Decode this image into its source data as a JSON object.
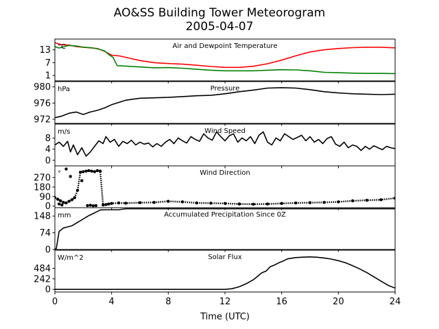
{
  "figure": {
    "title_line1": "AO&SS Building Tower Meteorogram",
    "title_line2": "2005-04-07",
    "xlabel": "Time (UTC)",
    "xlim": [
      0,
      24
    ],
    "xticks": [
      0,
      4,
      8,
      12,
      16,
      20,
      24
    ],
    "xtick_labels": [
      "0",
      "4",
      "8",
      "12",
      "16",
      "20",
      "24"
    ]
  },
  "chart_data": [
    {
      "type": "line",
      "title": "Air and Dewpoint Temperature",
      "unit": "°C",
      "ylim": [
        -1.5,
        18
      ],
      "yticks": [
        1,
        7,
        13
      ],
      "ytick_labels": [
        "1",
        "7",
        "13"
      ],
      "series": [
        {
          "color": "#ff0000",
          "x": [
            0,
            0.4,
            1,
            1.5,
            2,
            2.5,
            3,
            3.5,
            4,
            4.5,
            5,
            6,
            7,
            8,
            9,
            10,
            11,
            12,
            13,
            14,
            15,
            16,
            17,
            18,
            19,
            20,
            21,
            22,
            23,
            24
          ],
          "values": [
            16.3,
            15.4,
            15.2,
            14.5,
            14.2,
            13.9,
            13.6,
            12.3,
            10.5,
            10.2,
            9.5,
            8.0,
            7.0,
            6.6,
            6.3,
            5.8,
            5.2,
            4.8,
            4.8,
            5.3,
            6.5,
            8.2,
            10.2,
            12.0,
            13.0,
            13.6,
            14.0,
            14.2,
            14.2,
            13.9
          ]
        },
        {
          "color": "#008000",
          "x": [
            0,
            0.3,
            0.7,
            1,
            1.5,
            2,
            2.5,
            3,
            3.5,
            3.9,
            4.1,
            4.4,
            5,
            6,
            7,
            8,
            9,
            10,
            11,
            12,
            13,
            14,
            15,
            16,
            17,
            18,
            19,
            20,
            21,
            22,
            23,
            24
          ],
          "values": [
            14.5,
            13.8,
            14.6,
            15.0,
            14.8,
            14.2,
            14.0,
            13.5,
            12.5,
            10.3,
            9.5,
            5.6,
            5.4,
            5.0,
            4.6,
            4.7,
            4.4,
            3.9,
            3.5,
            3.2,
            3.2,
            3.2,
            3.5,
            3.7,
            3.6,
            3.2,
            2.5,
            2.3,
            2.1,
            2.0,
            2.0,
            1.9
          ]
        }
      ]
    },
    {
      "type": "line",
      "title": "Pressure",
      "unit": "hPa",
      "ylim": [
        971.0,
        981.3
      ],
      "yticks": [
        972,
        976,
        980
      ],
      "ytick_labels": [
        "972",
        "976",
        "980"
      ],
      "series": [
        {
          "color": "#000000",
          "x": [
            0,
            0.5,
            1,
            1.5,
            2,
            2.5,
            3,
            3.5,
            4,
            5,
            6,
            7,
            8,
            9,
            10,
            11,
            12,
            13,
            14,
            15,
            16,
            17,
            18,
            19,
            20,
            21,
            22,
            23,
            24
          ],
          "values": [
            972.4,
            972.8,
            973.5,
            973.8,
            973.2,
            973.8,
            974.2,
            974.8,
            975.6,
            976.7,
            977.2,
            977.3,
            977.4,
            977.6,
            977.8,
            977.9,
            978.3,
            978.8,
            979.2,
            979.7,
            979.8,
            979.7,
            979.3,
            978.8,
            978.5,
            978.3,
            978.2,
            978.1,
            978.2
          ]
        }
      ]
    },
    {
      "type": "line",
      "title": "Wind Speed",
      "unit": "m/s",
      "ylim": [
        -2,
        13
      ],
      "yticks": [
        0,
        4,
        8
      ],
      "ytick_labels": [
        "0",
        "4",
        "8"
      ],
      "series": [
        {
          "color": "#000000",
          "x": [
            0,
            0.3,
            0.6,
            0.9,
            1.1,
            1.3,
            1.6,
            1.9,
            2.2,
            2.5,
            2.8,
            3.1,
            3.4,
            3.6,
            3.9,
            4.2,
            4.5,
            4.8,
            5.1,
            5.4,
            5.7,
            6.0,
            6.3,
            6.6,
            6.9,
            7.2,
            7.5,
            7.8,
            8.1,
            8.4,
            8.7,
            9.0,
            9.3,
            9.6,
            9.9,
            10.2,
            10.5,
            10.8,
            11.1,
            11.4,
            11.7,
            12.0,
            12.3,
            12.6,
            12.9,
            13.2,
            13.5,
            13.8,
            14.1,
            14.4,
            14.7,
            15.0,
            15.3,
            15.6,
            15.9,
            16.2,
            16.5,
            16.8,
            17.1,
            17.4,
            17.7,
            18.0,
            18.3,
            18.6,
            18.9,
            19.2,
            19.5,
            19.8,
            20.1,
            20.4,
            20.7,
            21.0,
            21.3,
            21.6,
            21.9,
            22.2,
            22.5,
            22.8,
            23.1,
            23.4,
            23.7,
            24.0
          ],
          "values": [
            5.5,
            6.5,
            5.0,
            6.8,
            3.0,
            5.5,
            2.0,
            4.5,
            1.5,
            3.0,
            5.0,
            7.0,
            6.0,
            8.5,
            6.5,
            7.5,
            5.0,
            6.8,
            6.0,
            7.2,
            5.5,
            6.5,
            5.8,
            6.2,
            4.8,
            6.0,
            5.0,
            6.5,
            7.5,
            6.0,
            8.0,
            7.0,
            6.2,
            8.5,
            7.5,
            6.8,
            9.5,
            8.0,
            7.2,
            10.2,
            8.5,
            7.0,
            8.8,
            9.5,
            6.5,
            8.0,
            7.0,
            8.5,
            6.0,
            9.0,
            10.2,
            6.5,
            5.5,
            8.0,
            7.0,
            9.5,
            8.5,
            7.5,
            8.2,
            9.0,
            7.0,
            8.5,
            6.5,
            7.5,
            6.0,
            7.8,
            8.5,
            5.8,
            5.0,
            6.5,
            4.5,
            5.5,
            5.0,
            3.5,
            5.0,
            4.0,
            5.2,
            4.5,
            3.8,
            5.0,
            4.5,
            4.2
          ]
        }
      ]
    },
    {
      "type": "scatter",
      "title": "Wind Direction",
      "unit": "°",
      "ylim": [
        -15,
        380
      ],
      "yticks": [
        0,
        90,
        180,
        270
      ],
      "ytick_labels": [
        "0",
        "90",
        "180",
        "270"
      ],
      "series": [
        {
          "color": "#000000",
          "x": [
            0,
            0.2,
            0.4,
            0.6,
            0.8,
            1.0,
            1.2,
            1.4,
            1.6,
            1.8,
            2.0,
            2.2,
            2.4,
            2.6,
            2.8,
            3.0,
            3.2,
            3.4,
            3.6,
            3.8,
            4.0,
            4.5,
            5,
            6,
            7,
            8,
            9,
            10,
            11,
            12,
            13,
            14,
            15,
            16,
            17,
            18,
            19,
            20,
            21,
            22,
            23,
            24
          ],
          "values": [
            80,
            65,
            50,
            35,
            30,
            45,
            60,
            80,
            150,
            320,
            325,
            330,
            335,
            330,
            325,
            335,
            330,
            10,
            15,
            20,
            25,
            30,
            28,
            32,
            35,
            45,
            40,
            30,
            28,
            25,
            20,
            18,
            20,
            25,
            30,
            32,
            35,
            40,
            50,
            55,
            60,
            75
          ]
        },
        {
          "color": "#000000",
          "x": [
            0.8,
            1.1,
            1.9,
            2.3,
            2.5,
            2.7,
            2.9,
            0.3,
            0.5
          ],
          "values": [
            350,
            280,
            240,
            5,
            8,
            3,
            5,
            20,
            10
          ]
        }
      ]
    },
    {
      "type": "line",
      "title": "Accumulated Precipitation Since 0Z",
      "unit": "mm",
      "ylim": [
        0,
        185
      ],
      "yticks": [
        0,
        74,
        148
      ],
      "ytick_labels": [
        "0",
        "74",
        "148"
      ],
      "series": [
        {
          "color": "#000000",
          "x": [
            0,
            0.1,
            0.3,
            0.6,
            0.9,
            1.2,
            1.6,
            2.0,
            2.4,
            2.8,
            3.2,
            3.6,
            4.0,
            4.5,
            5,
            6,
            7,
            8,
            10,
            12,
            14,
            16,
            18,
            20,
            22,
            24
          ],
          "values": [
            0,
            5,
            80,
            95,
            100,
            105,
            120,
            135,
            150,
            162,
            175,
            176,
            176,
            176,
            180,
            180,
            180,
            180,
            180,
            180,
            180,
            180,
            180,
            180,
            180,
            180
          ]
        }
      ]
    },
    {
      "type": "line",
      "title": "Solar Flux",
      "unit": "W/m^2",
      "ylim": [
        -60,
        900
      ],
      "yticks": [
        0,
        242,
        484
      ],
      "ytick_labels": [
        "0",
        "242",
        "484"
      ],
      "series": [
        {
          "color": "#000000",
          "x": [
            0,
            6,
            12,
            12.5,
            13,
            13.5,
            14,
            14.3,
            14.6,
            14.9,
            15.2,
            15.5,
            15.8,
            16.1,
            16.4,
            17,
            17.5,
            18,
            18.5,
            19,
            19.5,
            20,
            20.5,
            21,
            21.5,
            22,
            22.5,
            23,
            23.5,
            24
          ],
          "values": [
            0,
            0,
            0,
            15,
            60,
            130,
            220,
            300,
            380,
            420,
            520,
            560,
            610,
            650,
            700,
            730,
            740,
            745,
            738,
            720,
            695,
            660,
            610,
            545,
            470,
            385,
            290,
            190,
            95,
            30
          ]
        }
      ]
    }
  ]
}
